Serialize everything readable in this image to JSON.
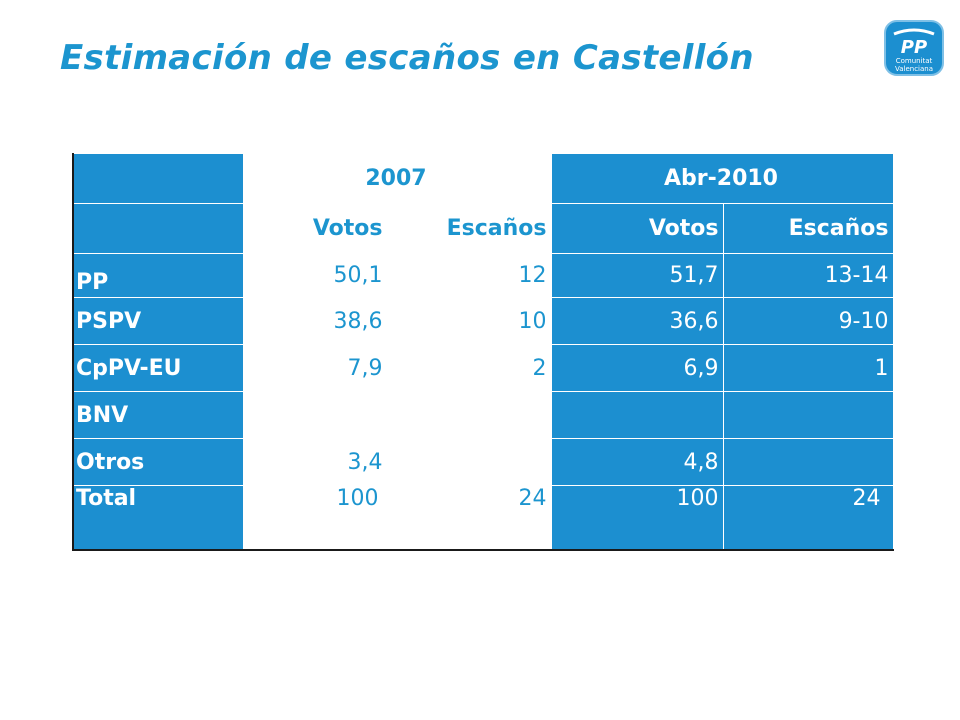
{
  "slide": {
    "title": "Estimación de escaños en Castellón",
    "logo_text_main": "PP",
    "logo_text_sub1": "Comunitat",
    "logo_text_sub2": "Valenciana"
  },
  "table": {
    "periods": [
      "2007",
      "Abr-2010"
    ],
    "columns": [
      "Votos",
      "Escaños",
      "Votos",
      "Escaños"
    ],
    "rows": [
      {
        "party": "PP",
        "values": [
          "50,1",
          "12",
          "51,7",
          "13-14"
        ]
      },
      {
        "party": "PSPV",
        "values": [
          "38,6",
          "10",
          "36,6",
          "9-10"
        ]
      },
      {
        "party": "CpPV-EU",
        "values": [
          "7,9",
          "2",
          "6,9",
          "1"
        ]
      },
      {
        "party": "BNV",
        "values": [
          "",
          "",
          "",
          ""
        ]
      },
      {
        "party": "Otros",
        "values": [
          "3,4",
          "",
          "4,8",
          ""
        ]
      },
      {
        "party": "Total",
        "values": [
          "100",
          "24",
          "100",
          "24"
        ]
      }
    ]
  },
  "colors": {
    "brand_blue": "#1C8FD0",
    "title_blue": "#1C95CF"
  }
}
